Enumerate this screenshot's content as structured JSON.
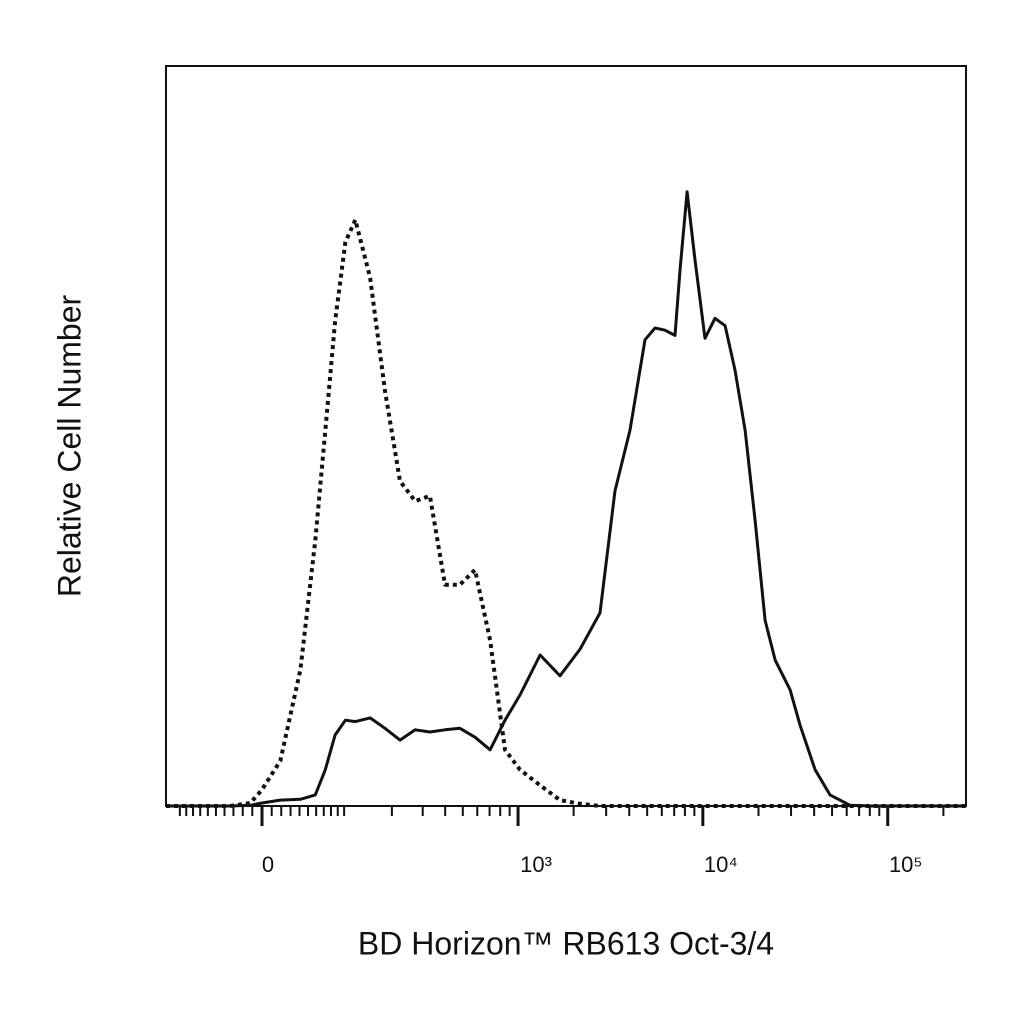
{
  "chart_data": {
    "type": "line",
    "xlabel": "BD Horizon™ RB613  Oct-3/4",
    "ylabel": "Relative Cell Number",
    "xscale": "biexponential",
    "xlim": [
      -124,
      265000
    ],
    "ylim": [
      0,
      100
    ],
    "xticks": [
      0,
      {
        "value": 1000,
        "label": "10³"
      },
      {
        "value": 10000,
        "label": "10⁴"
      },
      {
        "value": 100000,
        "label": "10⁵"
      }
    ],
    "xminorticks": [
      -100,
      -90,
      -80,
      -70,
      -60,
      -50,
      -40,
      -30,
      -20,
      -10,
      10,
      20,
      30,
      40,
      50,
      60,
      70,
      80,
      90,
      100,
      200,
      300,
      400,
      500,
      600,
      700,
      800,
      900,
      2000,
      3000,
      4000,
      5000,
      6000,
      7000,
      8000,
      9000,
      20000,
      30000,
      40000,
      50000,
      60000,
      70000,
      80000,
      90000,
      200000
    ],
    "x": [
      -124,
      -70,
      -34,
      -12,
      0,
      19,
      41,
      59,
      72,
      86,
      102,
      119,
      148,
      182,
      223,
      272,
      329,
      399,
      482,
      583,
      705,
      849,
      1025,
      1316,
      1688,
      2167,
      2779,
      3349,
      4039,
      4869,
      5510,
      6245,
      7071,
      7525,
      8219,
      9070,
      10275,
      11638,
      13191,
      14934,
      16925,
      19171,
      21724,
      24615,
      29645,
      33569,
      40466,
      48734,
      62611,
      80287,
      116631,
      265000
    ],
    "series": [
      {
        "color": "#111111",
        "dash": "solid",
        "values": [
          0,
          0,
          0,
          0.1,
          0.4,
          0.8,
          0.9,
          1.5,
          4.9,
          9.6,
          11.6,
          11.4,
          11.9,
          10.5,
          8.9,
          10.3,
          10.0,
          10.3,
          10.5,
          9.3,
          7.6,
          11.6,
          15.0,
          20.4,
          17.6,
          21.2,
          26.1,
          42.6,
          50.8,
          63.0,
          64.6,
          64.3,
          63.6,
          72.4,
          83.0,
          73.8,
          63.2,
          65.9,
          64.9,
          58.9,
          50.8,
          38.6,
          25.1,
          19.7,
          15.7,
          10.9,
          4.9,
          1.5,
          0.1,
          0,
          0,
          0
        ]
      },
      {
        "color": "#111111",
        "dash": "dotted",
        "values": [
          0,
          0,
          0,
          0.4,
          2.2,
          6.1,
          18.4,
          35.9,
          50.7,
          65.5,
          76.2,
          79.2,
          71.4,
          56.1,
          43.9,
          41.2,
          41.9,
          29.9,
          29.9,
          31.9,
          22.4,
          7.6,
          4.9,
          2.8,
          0.8,
          0.3,
          0,
          0,
          0,
          0,
          0,
          0,
          0,
          0,
          0,
          0,
          0,
          0,
          0,
          0,
          0,
          0,
          0,
          0,
          0,
          0,
          0,
          0,
          0,
          0,
          0,
          0
        ]
      }
    ]
  }
}
